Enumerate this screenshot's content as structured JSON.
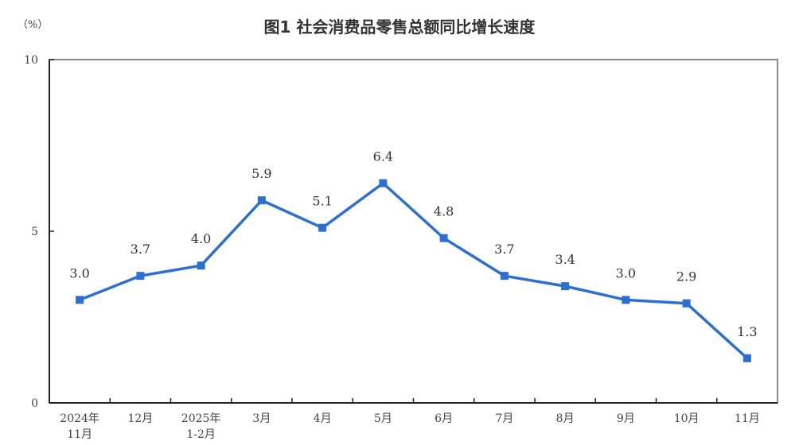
{
  "header": {
    "unit": "（%）",
    "title": "图1  社会消费品零售总额同比增长速度"
  },
  "chart_data": {
    "type": "line",
    "title": "图1 社会消费品零售总额同比增长速度",
    "xlabel": "",
    "ylabel": "（%）",
    "ylim": [
      0,
      10
    ],
    "yticks": [
      0,
      5,
      10
    ],
    "grid": false,
    "legend": null,
    "categories": [
      "2024年\n11月",
      "12月",
      "2025年\n1-2月",
      "3月",
      "4月",
      "5月",
      "6月",
      "7月",
      "8月",
      "9月",
      "10月",
      "11月"
    ],
    "series": [
      {
        "name": "社会消费品零售总额同比增长速度",
        "color": "#2d6fd1",
        "marker": "square",
        "values": [
          3.0,
          3.7,
          4.0,
          5.9,
          5.1,
          6.4,
          4.8,
          3.7,
          3.4,
          3.0,
          2.9,
          1.3
        ],
        "data_labels": [
          "3.0",
          "3.7",
          "4.0",
          "5.9",
          "5.1",
          "6.4",
          "4.8",
          "3.7",
          "3.4",
          "3.0",
          "2.9",
          "1.3"
        ]
      }
    ]
  }
}
